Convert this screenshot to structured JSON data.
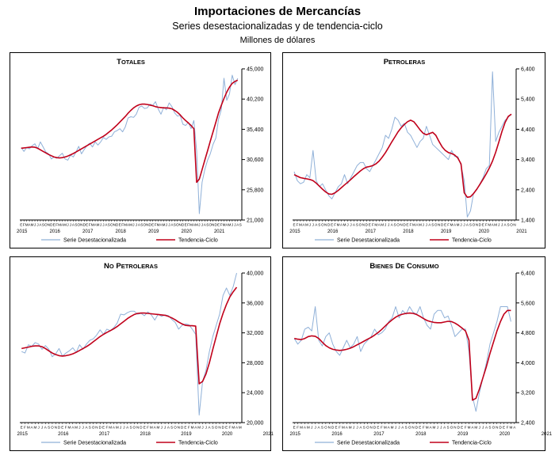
{
  "header": {
    "title": "Importaciones de Mercancías",
    "subtitle": "Series desestacionalizadas y de tendencia-ciclo",
    "units": "Millones de dólares"
  },
  "legend": {
    "series1": "Serie Desestacionalizada",
    "series2": "Tendencia-Ciclo"
  },
  "colors": {
    "seasonal": "#8fb0d8",
    "trend": "#c0001a"
  },
  "chart_data": [
    {
      "type": "line",
      "title": "TOTALES",
      "years": [
        "2015",
        "2016",
        "2017",
        "2018",
        "2019",
        "2020",
        "2021"
      ],
      "x_start": "2015-01",
      "frequency": "monthly",
      "ylim": [
        21000,
        45000
      ],
      "yticks": [
        21000,
        25800,
        30600,
        35400,
        40200,
        45000
      ],
      "ytick_labels": [
        "21,000",
        "25,800",
        "30,600",
        "35,400",
        "40,200",
        "45,000"
      ],
      "legend_position": "bottom",
      "series": [
        {
          "name": "Serie Desestacionalizada",
          "values": [
            32500,
            31900,
            32500,
            32300,
            32800,
            33100,
            32300,
            33400,
            32600,
            31800,
            31500,
            30700,
            31000,
            30800,
            31200,
            31600,
            30700,
            30500,
            31300,
            31000,
            31800,
            32700,
            31500,
            32200,
            32800,
            33200,
            32600,
            33400,
            32900,
            33400,
            34100,
            33800,
            34200,
            34300,
            35000,
            35200,
            35500,
            35000,
            35800,
            37200,
            37400,
            37300,
            37800,
            38900,
            39100,
            38700,
            38800,
            39400,
            39200,
            39800,
            38600,
            37800,
            38900,
            38500,
            39600,
            39000,
            38000,
            37500,
            37600,
            36200,
            36000,
            36500,
            35500,
            36800,
            32000,
            22000,
            27000,
            29000,
            30500,
            31500,
            33000,
            34000,
            37000,
            38500,
            43500,
            40000,
            41000,
            44000,
            42500,
            43500
          ]
        },
        {
          "name": "Tendencia-Ciclo",
          "values": [
            32400,
            32450,
            32500,
            32550,
            32600,
            32550,
            32400,
            32150,
            31900,
            31650,
            31400,
            31200,
            31000,
            30900,
            30850,
            30900,
            31000,
            31150,
            31350,
            31550,
            31800,
            32050,
            32300,
            32550,
            32800,
            33050,
            33300,
            33550,
            33800,
            34050,
            34300,
            34600,
            34950,
            35300,
            35700,
            36100,
            36550,
            37000,
            37450,
            37950,
            38400,
            38800,
            39100,
            39300,
            39400,
            39400,
            39350,
            39250,
            39150,
            39000,
            38900,
            38850,
            38800,
            38800,
            38750,
            38650,
            38400,
            38100,
            37700,
            37200,
            36800,
            36400,
            36000,
            35500,
            27000,
            27500,
            29000,
            30500,
            32000,
            33500,
            35000,
            36500,
            38000,
            39200,
            40300,
            41300,
            42100,
            42700,
            43000,
            43200
          ]
        }
      ]
    },
    {
      "type": "line",
      "title": "PETROLERAS",
      "years": [
        "2015",
        "2016",
        "2017",
        "2018",
        "2019",
        "2020",
        "2021"
      ],
      "x_start": "2015-01",
      "frequency": "monthly",
      "ylim": [
        1400,
        6400
      ],
      "yticks": [
        1400,
        2400,
        3400,
        4400,
        5400,
        6400
      ],
      "ytick_labels": [
        "1,400",
        "2,400",
        "3,400",
        "4,400",
        "5,400",
        "6,400"
      ],
      "legend_position": "bottom",
      "series": [
        {
          "name": "Serie Desestacionalizada",
          "values": [
            3000,
            2700,
            2600,
            2650,
            2900,
            2800,
            3700,
            2700,
            2500,
            2600,
            2400,
            2200,
            2100,
            2300,
            2500,
            2600,
            2900,
            2600,
            2800,
            3000,
            3200,
            3300,
            3300,
            3100,
            3000,
            3200,
            3400,
            3600,
            3800,
            4200,
            4100,
            4400,
            4800,
            4700,
            4500,
            4600,
            4300,
            4200,
            4000,
            3800,
            4000,
            4100,
            4500,
            4200,
            3900,
            3800,
            3700,
            3600,
            3500,
            3400,
            3700,
            3500,
            3500,
            3200,
            2700,
            1500,
            1700,
            2300,
            2400,
            2600,
            2800,
            3100,
            3200,
            6300,
            4000,
            4300,
            4500,
            4700,
            4800,
            4900
          ]
        },
        {
          "name": "Tendencia-Ciclo",
          "values": [
            2900,
            2850,
            2800,
            2780,
            2760,
            2740,
            2700,
            2620,
            2520,
            2420,
            2330,
            2260,
            2250,
            2300,
            2380,
            2470,
            2560,
            2650,
            2740,
            2840,
            2930,
            3020,
            3100,
            3150,
            3170,
            3200,
            3260,
            3350,
            3480,
            3630,
            3800,
            3980,
            4150,
            4320,
            4450,
            4560,
            4650,
            4700,
            4650,
            4520,
            4380,
            4270,
            4220,
            4260,
            4300,
            4200,
            4000,
            3820,
            3700,
            3630,
            3600,
            3550,
            3450,
            3250,
            2300,
            2150,
            2170,
            2280,
            2420,
            2580,
            2750,
            2930,
            3120,
            3350,
            3640,
            3980,
            4330,
            4630,
            4830,
            4900
          ]
        }
      ]
    },
    {
      "type": "line",
      "title": "NO PETROLERAS",
      "years": [
        "2015",
        "2016",
        "2017",
        "2018",
        "2019",
        "2020",
        "2021"
      ],
      "x_start": "2015-01",
      "frequency": "monthly",
      "ylim": [
        20000,
        40000
      ],
      "yticks": [
        20000,
        24000,
        28000,
        32000,
        36000,
        40000
      ],
      "ytick_labels": [
        "20,000",
        "24,000",
        "28,000",
        "32,000",
        "36,000",
        "40,000"
      ],
      "legend_position": "bottom",
      "series": [
        {
          "name": "Serie Desestacionalizada",
          "values": [
            29500,
            29300,
            30400,
            30200,
            30700,
            30500,
            29800,
            30300,
            29800,
            28800,
            29200,
            29900,
            28900,
            29300,
            29600,
            30000,
            29400,
            30400,
            29800,
            30500,
            31000,
            31200,
            31700,
            32400,
            31800,
            32500,
            32300,
            32700,
            33300,
            34500,
            34400,
            34700,
            34900,
            34900,
            34500,
            34600,
            34300,
            34800,
            34400,
            33700,
            34500,
            34200,
            34400,
            34300,
            33800,
            33400,
            32500,
            33000,
            33200,
            33100,
            32500,
            31800,
            21000,
            25500,
            27000,
            29500,
            31500,
            33000,
            34500,
            37000,
            38000,
            37000,
            38200,
            40000
          ]
        },
        {
          "name": "Tendencia-Ciclo",
          "values": [
            29900,
            30000,
            30100,
            30200,
            30250,
            30250,
            30150,
            29900,
            29600,
            29300,
            29100,
            28950,
            28900,
            28950,
            29050,
            29200,
            29400,
            29650,
            29900,
            30150,
            30450,
            30800,
            31150,
            31500,
            31800,
            32050,
            32300,
            32550,
            32850,
            33200,
            33550,
            33900,
            34200,
            34450,
            34600,
            34650,
            34650,
            34600,
            34550,
            34500,
            34450,
            34400,
            34350,
            34200,
            34000,
            33750,
            33450,
            33200,
            33000,
            32950,
            32950,
            32900,
            25200,
            25500,
            26500,
            28000,
            29800,
            31500,
            33200,
            34600,
            35800,
            36800,
            37500,
            38100
          ]
        }
      ]
    },
    {
      "type": "line",
      "title": "BIENES DE CONSUMO",
      "years": [
        "2015",
        "2016",
        "2017",
        "2018",
        "2019",
        "2020",
        "2021"
      ],
      "x_start": "2015-01",
      "frequency": "monthly",
      "ylim": [
        2400,
        6400
      ],
      "yticks": [
        2400,
        3200,
        4000,
        4800,
        5600,
        6400
      ],
      "ytick_labels": [
        "2,400",
        "3,200",
        "4,000",
        "4,800",
        "5,600",
        "6,400"
      ],
      "legend_position": "bottom",
      "series": [
        {
          "name": "Serie Desestacionalizada",
          "values": [
            4650,
            4500,
            4600,
            4900,
            4950,
            4850,
            5500,
            4600,
            4450,
            4700,
            4800,
            4500,
            4300,
            4200,
            4400,
            4600,
            4400,
            4500,
            4700,
            4300,
            4500,
            4600,
            4700,
            4900,
            4750,
            4800,
            4900,
            5100,
            5200,
            5500,
            5200,
            5400,
            5300,
            5500,
            5350,
            5300,
            5500,
            5200,
            5000,
            4900,
            5300,
            5400,
            5400,
            5200,
            5250,
            5000,
            4700,
            4800,
            4900,
            4900,
            4300,
            3100,
            2700,
            3200,
            3600,
            4000,
            4500,
            4800,
            5100,
            5500,
            5500,
            5500,
            5100
          ]
        },
        {
          "name": "Tendencia-Ciclo",
          "values": [
            4650,
            4630,
            4620,
            4650,
            4700,
            4720,
            4710,
            4650,
            4550,
            4460,
            4400,
            4360,
            4340,
            4330,
            4340,
            4360,
            4390,
            4430,
            4480,
            4530,
            4580,
            4630,
            4680,
            4740,
            4810,
            4890,
            4980,
            5070,
            5150,
            5220,
            5270,
            5300,
            5320,
            5330,
            5320,
            5290,
            5240,
            5180,
            5130,
            5100,
            5080,
            5070,
            5070,
            5090,
            5110,
            5100,
            5060,
            5000,
            4930,
            4850,
            4600,
            3000,
            3050,
            3300,
            3600,
            3900,
            4250,
            4550,
            4850,
            5100,
            5300,
            5400,
            5400
          ]
        }
      ]
    }
  ]
}
